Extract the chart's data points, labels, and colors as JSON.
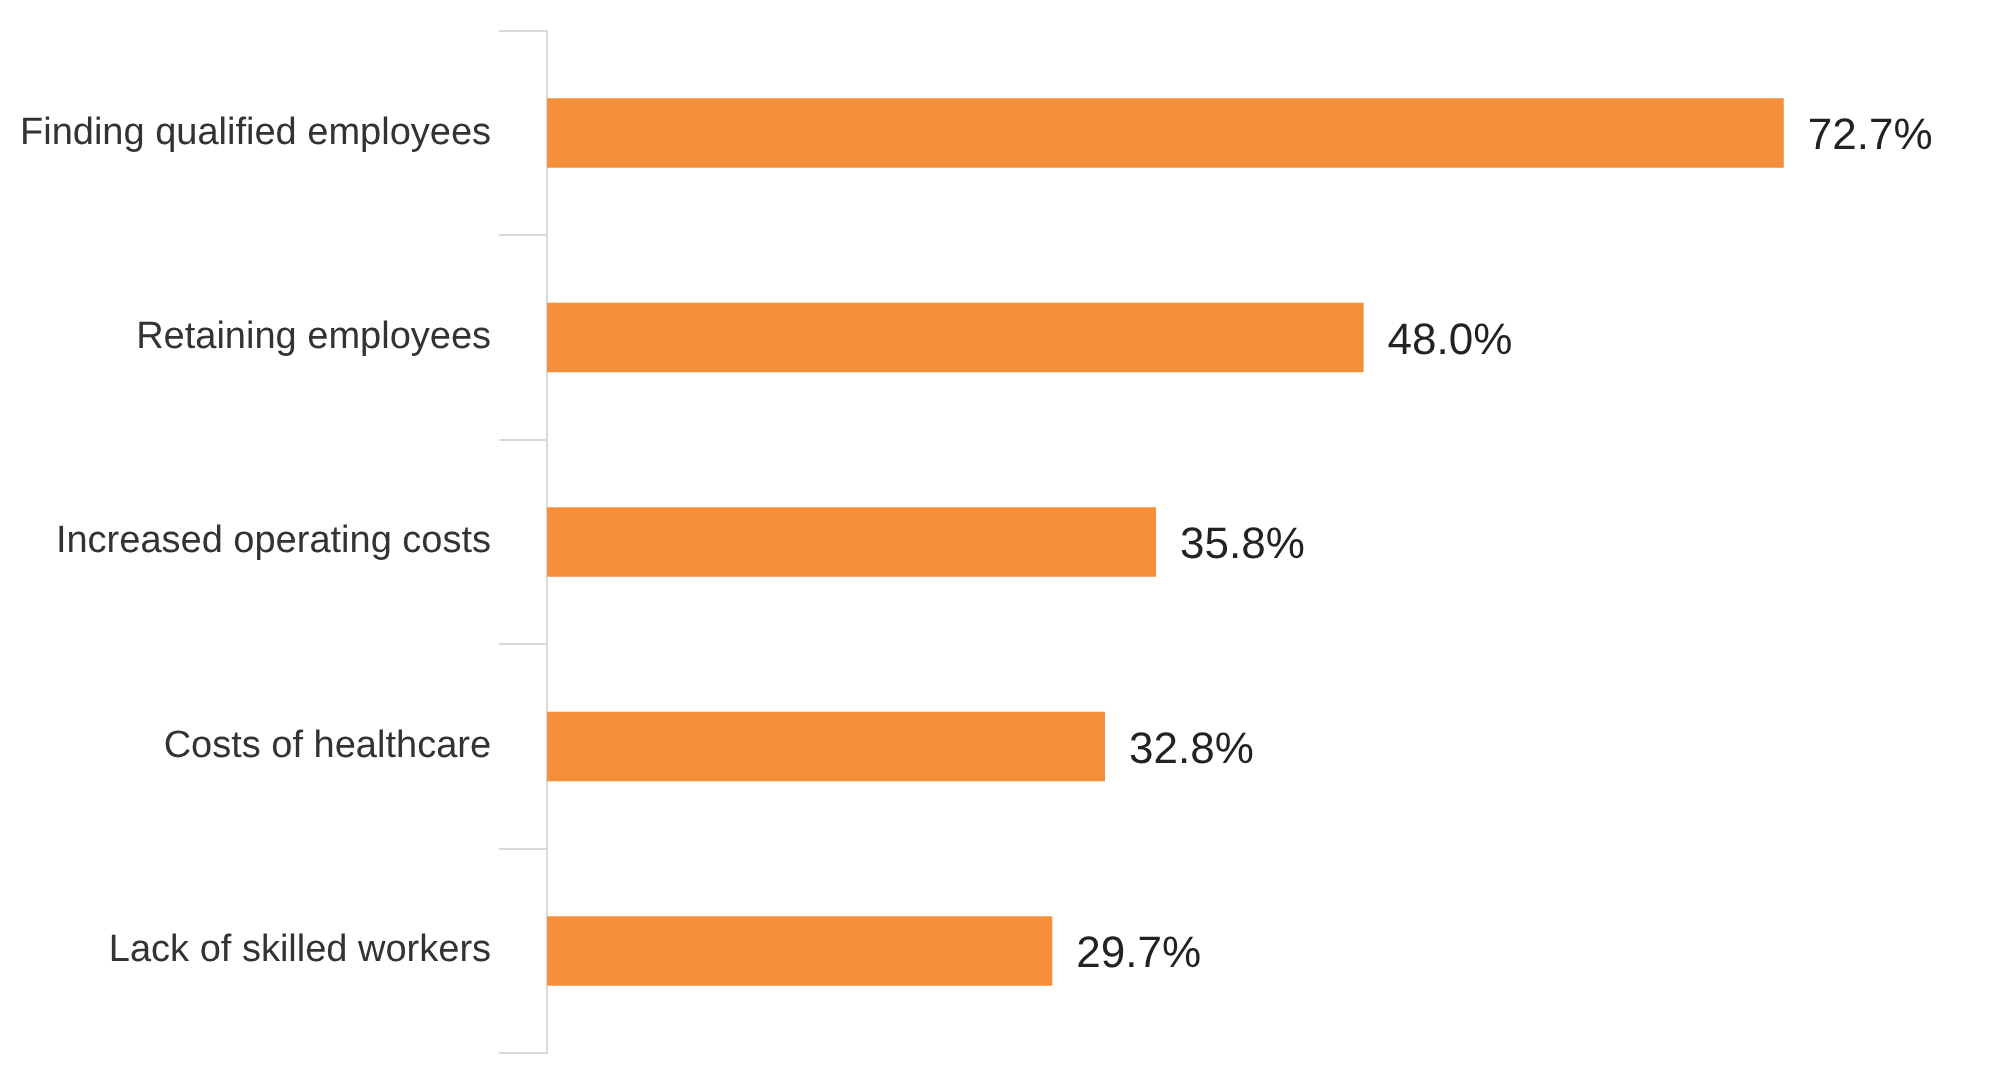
{
  "chart_data": {
    "type": "bar",
    "orientation": "horizontal",
    "categories": [
      "Finding qualified employees",
      "Retaining employees",
      "Increased operating costs",
      "Costs of healthcare",
      "Lack of skilled workers"
    ],
    "values": [
      72.7,
      48.0,
      35.8,
      32.8,
      29.7
    ],
    "value_labels": [
      "72.7%",
      "48.0%",
      "35.8%",
      "32.8%",
      "29.7%"
    ],
    "color": "#f58f3a"
  }
}
